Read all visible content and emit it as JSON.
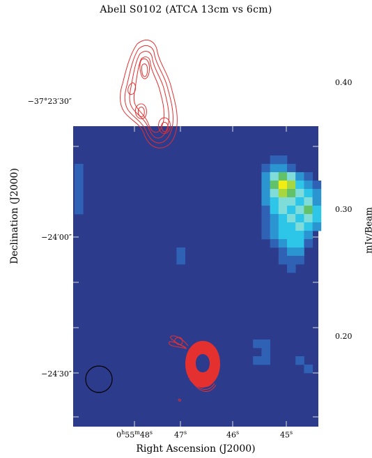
{
  "chart_data": {
    "type": "heatmap",
    "title": "Abell S0102 (ATCA 13cm vs 6cm)",
    "xlabel": "Right Ascension (J2000)",
    "ylabel": "Declination (J2000)",
    "colorbar_label": "mJy/Beam",
    "y_ticks": [
      "−37°23′30″",
      "−24′00″",
      "−24′30″"
    ],
    "x_ticks": [
      {
        "base": "0",
        "h": "h",
        "mm": "55",
        "m": "m",
        "ss": "48",
        "s": "s"
      },
      {
        "base": "47",
        "s": "s"
      },
      {
        "base": "46",
        "s": "s"
      },
      {
        "base": "45",
        "s": "s"
      }
    ],
    "colorbar_ticks": [
      "0.40",
      "0.30",
      "0.20"
    ],
    "colorbar_values": [
      0.4,
      0.3,
      0.2
    ],
    "background_value": 0.14,
    "colormap": [
      "#2c3b8c",
      "#2f62b4",
      "#2b95d2",
      "#2ec6e8",
      "#7fdcd8",
      "#62c26a",
      "#a6d640",
      "#f0ec14"
    ],
    "beam_shape": "circle",
    "contour_color": "#e53030"
  }
}
